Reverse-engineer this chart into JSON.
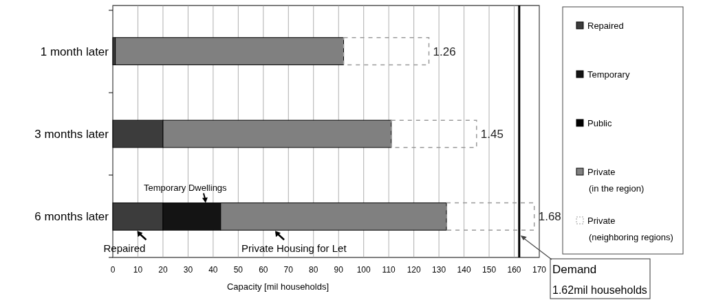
{
  "chart_data": {
    "type": "bar",
    "orientation": "horizontal",
    "stacked": true,
    "xlabel": "Capacity [mil households]",
    "categories": [
      "1 month later",
      "3 months later",
      "6 months later"
    ],
    "series": [
      {
        "name": "Repaired",
        "color": "#3c3c3c",
        "values": [
          1,
          20,
          20
        ]
      },
      {
        "name": "Temporary",
        "color": "#141414",
        "values": [
          0,
          0,
          23
        ]
      },
      {
        "name": "Public",
        "color": "#000000",
        "values": [
          0,
          0,
          0
        ]
      },
      {
        "name": "Private (in the region)",
        "color": "#808080",
        "values": [
          91,
          91,
          90
        ]
      },
      {
        "name": "Private (neighboring regions)",
        "color": "#9a9a9a",
        "line_style": "dashed",
        "values": [
          34,
          34,
          35
        ]
      }
    ],
    "xlim": [
      0,
      170
    ],
    "xticks": [
      0,
      10,
      20,
      30,
      40,
      50,
      60,
      70,
      80,
      90,
      100,
      110,
      120,
      130,
      140,
      150,
      160,
      170
    ],
    "grid": "x",
    "legend": "right",
    "ref_lines": [
      {
        "axis": "x",
        "value": 162,
        "label": "Demand 1.62mil households",
        "color": "#000000"
      }
    ],
    "annotations": [
      {
        "text": "1.26",
        "x": 126,
        "y": "1 month later"
      },
      {
        "text": "1.45",
        "x": 145,
        "y": "3 months later"
      },
      {
        "text": "1.68",
        "x": 168,
        "y": "6 months later"
      },
      "Temporary Dwellings",
      "Repaired",
      "Private Housing for Let"
    ]
  }
}
